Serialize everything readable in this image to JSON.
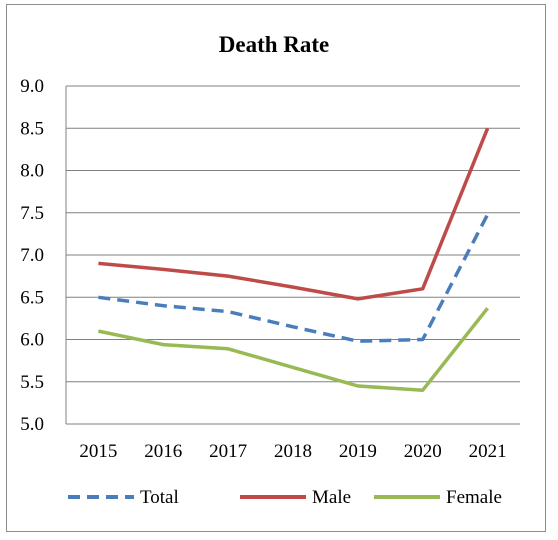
{
  "chart_data": {
    "type": "line",
    "title": "Death Rate",
    "xlabel": "",
    "ylabel": "",
    "x": [
      "2015",
      "2016",
      "2017",
      "2018",
      "2019",
      "2020",
      "2021"
    ],
    "ylim": [
      5.0,
      9.0
    ],
    "yticks": [
      "5.0",
      "5.5",
      "6.0",
      "6.5",
      "7.0",
      "7.5",
      "8.0",
      "8.5",
      "9.0"
    ],
    "grid": true,
    "legend_position": "bottom",
    "series": [
      {
        "name": "Total",
        "values": [
          6.5,
          6.4,
          6.33,
          6.15,
          5.98,
          6.0,
          7.48
        ],
        "color": "#4a7ebb",
        "style": "dashed"
      },
      {
        "name": "Male",
        "values": [
          6.9,
          6.83,
          6.75,
          6.62,
          6.48,
          6.6,
          8.5
        ],
        "color": "#be4b48",
        "style": "solid"
      },
      {
        "name": "Female",
        "values": [
          6.1,
          5.94,
          5.89,
          5.67,
          5.45,
          5.4,
          6.37
        ],
        "color": "#98b954",
        "style": "solid"
      }
    ]
  }
}
